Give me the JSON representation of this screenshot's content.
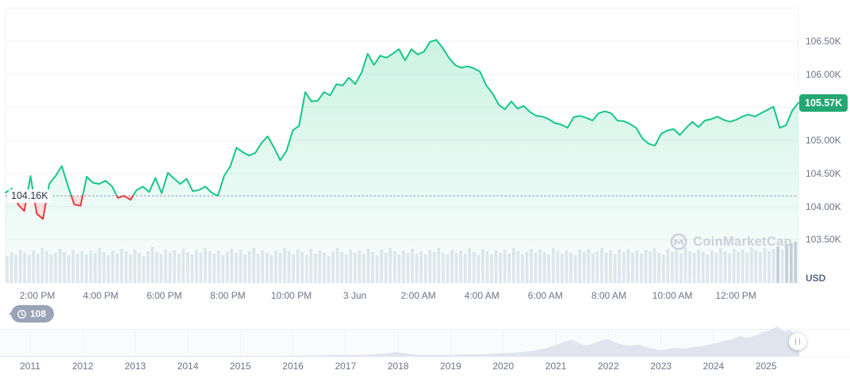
{
  "watermark": {
    "text": "CoinMarketCap"
  },
  "watch_badge": {
    "count": "108"
  },
  "price_badge": {
    "label": "105.57K",
    "color": "#23a873"
  },
  "colors": {
    "line_up": "#16c784",
    "line_down": "#ea3943",
    "fill_up_top": "rgba(22,199,132,0.22)",
    "fill_up_bottom": "rgba(22,199,132,0.02)",
    "fill_down": "rgba(234,57,67,0.16)",
    "grid": "#eff2f5",
    "axis_text": "#6b7589",
    "volume": "#e4e8f0",
    "volume_dark": "#c9cfdd",
    "nav_fill": "#dfe4ee",
    "nav_bg": "#fafbfd",
    "dotted": "#9aa3b3",
    "badge_bg": "#9aa4b8",
    "watermark": "#cad0db"
  },
  "chart_data": {
    "type": "area",
    "currency": "USD",
    "current_price": 105.57,
    "current_price_label": "105.57K",
    "open_price": 104.16,
    "open_price_label": "104.16K",
    "y_axis": {
      "unit_label": "USD",
      "ticks": [
        {
          "label": "106.50K",
          "value": 106.5
        },
        {
          "label": "106.00K",
          "value": 106.0
        },
        {
          "label": "105.00K",
          "value": 105.0
        },
        {
          "label": "104.50K",
          "value": 104.5
        },
        {
          "label": "104.00K",
          "value": 104.0
        },
        {
          "label": "103.50K",
          "value": 103.5
        }
      ],
      "grid_values": [
        107.0,
        106.5,
        106.0,
        105.5,
        105.0,
        104.5,
        104.0,
        103.5
      ]
    },
    "x_axis": {
      "ticks": [
        "2:00 PM",
        "4:00 PM",
        "6:00 PM",
        "8:00 PM",
        "10:00 PM",
        "3 Jun",
        "2:00 AM",
        "4:00 AM",
        "6:00 AM",
        "8:00 AM",
        "10:00 AM",
        "12:00 PM"
      ]
    },
    "series": [
      {
        "name": "price",
        "unit": "thousand USD",
        "values": [
          104.21,
          104.27,
          104.03,
          103.93,
          104.46,
          103.89,
          103.81,
          104.34,
          104.46,
          104.61,
          104.31,
          104.03,
          104.01,
          104.45,
          104.36,
          104.34,
          104.39,
          104.31,
          104.13,
          104.16,
          104.1,
          104.25,
          104.3,
          104.22,
          104.43,
          104.2,
          104.51,
          104.42,
          104.34,
          104.42,
          104.23,
          104.25,
          104.3,
          104.21,
          104.16,
          104.46,
          104.61,
          104.89,
          104.82,
          104.77,
          104.81,
          104.96,
          105.06,
          104.89,
          104.7,
          104.84,
          105.15,
          105.22,
          105.73,
          105.59,
          105.6,
          105.73,
          105.68,
          105.85,
          105.83,
          105.95,
          105.85,
          106.02,
          106.31,
          106.14,
          106.28,
          106.25,
          106.31,
          106.38,
          106.21,
          106.38,
          106.3,
          106.34,
          106.49,
          106.52,
          106.4,
          106.25,
          106.14,
          106.1,
          106.12,
          106.09,
          106.04,
          105.83,
          105.71,
          105.54,
          105.47,
          105.59,
          105.48,
          105.52,
          105.43,
          105.37,
          105.36,
          105.32,
          105.26,
          105.24,
          105.19,
          105.35,
          105.37,
          105.34,
          105.3,
          105.41,
          105.44,
          105.41,
          105.3,
          105.29,
          105.25,
          105.19,
          105.03,
          104.95,
          104.92,
          105.1,
          105.15,
          105.17,
          105.08,
          105.19,
          105.28,
          105.2,
          105.3,
          105.32,
          105.36,
          105.31,
          105.28,
          105.31,
          105.36,
          105.39,
          105.36,
          105.41,
          105.46,
          105.51,
          105.19,
          105.23,
          105.45,
          105.57
        ]
      }
    ],
    "volume_bars": {
      "heights": [
        34,
        39,
        36,
        42,
        38,
        35,
        41,
        37,
        44,
        40,
        36,
        38,
        43,
        39,
        35,
        42,
        37,
        40,
        36,
        41,
        38,
        44,
        39,
        35,
        41,
        37,
        43,
        40,
        36,
        42,
        38,
        34,
        40,
        45,
        39,
        36,
        42,
        38,
        41,
        37,
        43,
        39,
        36,
        42,
        38,
        44,
        40,
        37,
        41,
        35,
        39,
        43,
        38,
        42,
        36,
        40,
        44,
        37,
        41,
        38,
        35,
        41,
        38,
        44,
        40,
        36,
        42,
        39,
        35,
        43,
        37,
        41,
        38,
        34,
        40,
        44,
        39,
        36,
        42,
        38,
        41,
        37,
        43,
        39,
        35,
        42,
        38,
        44,
        40,
        36,
        41,
        38,
        43,
        37,
        40,
        36,
        42,
        39,
        44,
        38,
        36,
        42,
        38,
        41,
        37,
        44,
        39,
        35,
        43,
        40,
        36,
        41,
        38,
        42,
        37,
        44,
        40,
        36,
        39,
        43,
        38,
        42,
        39,
        36,
        44,
        40,
        37,
        41,
        38,
        35,
        42,
        39,
        43,
        37,
        40,
        44,
        38,
        41,
        36,
        42,
        39,
        43,
        38,
        41,
        37,
        42,
        40,
        44,
        38,
        36,
        43,
        39,
        41,
        37,
        44,
        40,
        38,
        42,
        39,
        36,
        41,
        38,
        44,
        40,
        37,
        43,
        39,
        42,
        38,
        45,
        41,
        39,
        44,
        40,
        43,
        46,
        42,
        48,
        50,
        52
      ]
    },
    "navigator": {
      "years": [
        "2011",
        "2012",
        "2013",
        "2014",
        "2015",
        "2016",
        "2017",
        "2018",
        "2019",
        "2020",
        "2021",
        "2022",
        "2023",
        "2024",
        "2025"
      ],
      "profile": [
        [
          0,
          1
        ],
        [
          60,
          1
        ],
        [
          120,
          1
        ],
        [
          180,
          1
        ],
        [
          240,
          1
        ],
        [
          300,
          1
        ],
        [
          360,
          1
        ],
        [
          420,
          2
        ],
        [
          455,
          2
        ],
        [
          490,
          4
        ],
        [
          500,
          6
        ],
        [
          510,
          4
        ],
        [
          530,
          2
        ],
        [
          560,
          2
        ],
        [
          590,
          3
        ],
        [
          610,
          3
        ],
        [
          630,
          4
        ],
        [
          650,
          5
        ],
        [
          670,
          7
        ],
        [
          690,
          11
        ],
        [
          705,
          16
        ],
        [
          715,
          20
        ],
        [
          722,
          21
        ],
        [
          730,
          17
        ],
        [
          740,
          14
        ],
        [
          750,
          17
        ],
        [
          760,
          21
        ],
        [
          768,
          22
        ],
        [
          776,
          18
        ],
        [
          786,
          15
        ],
        [
          796,
          14
        ],
        [
          806,
          15
        ],
        [
          814,
          12
        ],
        [
          824,
          10
        ],
        [
          834,
          8
        ],
        [
          844,
          10
        ],
        [
          854,
          11
        ],
        [
          864,
          10
        ],
        [
          874,
          12
        ],
        [
          884,
          13
        ],
        [
          894,
          15
        ],
        [
          904,
          17
        ],
        [
          914,
          20
        ],
        [
          924,
          22
        ],
        [
          934,
          26
        ],
        [
          940,
          24
        ],
        [
          948,
          25
        ],
        [
          956,
          28
        ],
        [
          964,
          31
        ],
        [
          972,
          34
        ],
        [
          980,
          38
        ],
        [
          985,
          35
        ],
        [
          990,
          31
        ],
        [
          996,
          34
        ],
        [
          1001,
          29
        ],
        [
          1005,
          31
        ],
        [
          1008,
          27
        ]
      ]
    }
  }
}
